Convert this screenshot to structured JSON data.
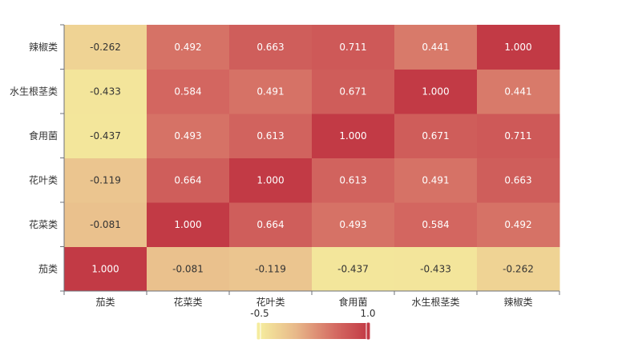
{
  "chart_data": {
    "type": "heatmap",
    "x_categories": [
      "茄类",
      "花菜类",
      "花叶类",
      "食用菌",
      "水生根茎类",
      "辣椒类"
    ],
    "y_categories": [
      "茄类",
      "花菜类",
      "花叶类",
      "食用菌",
      "水生根茎类",
      "辣椒类"
    ],
    "matrix": [
      [
        1.0,
        -0.081,
        -0.119,
        -0.437,
        -0.433,
        -0.262
      ],
      [
        -0.081,
        1.0,
        0.664,
        0.493,
        0.584,
        0.492
      ],
      [
        -0.119,
        0.664,
        1.0,
        0.613,
        0.491,
        0.663
      ],
      [
        -0.437,
        0.493,
        0.613,
        1.0,
        0.671,
        0.711
      ],
      [
        -0.433,
        0.584,
        0.491,
        0.671,
        1.0,
        0.441
      ],
      [
        -0.262,
        0.492,
        0.663,
        0.711,
        0.441,
        1.0
      ]
    ],
    "value_labels": [
      [
        "1.000",
        "-0.081",
        "-0.119",
        "-0.437",
        "-0.433",
        "-0.262"
      ],
      [
        "-0.081",
        "1.000",
        "0.664",
        "0.493",
        "0.584",
        "0.492"
      ],
      [
        "-0.119",
        "0.664",
        "1.000",
        "0.613",
        "0.491",
        "0.663"
      ],
      [
        "-0.437",
        "0.493",
        "0.613",
        "1.000",
        "0.671",
        "0.711"
      ],
      [
        "-0.433",
        "0.584",
        "0.491",
        "0.671",
        "1.000",
        "0.441"
      ],
      [
        "-0.262",
        "0.492",
        "0.663",
        "0.711",
        "0.441",
        "1.000"
      ]
    ],
    "visual_map": {
      "min": -0.5,
      "max": 1.0,
      "min_label": "-0.5",
      "max_label": "1.0",
      "colors": [
        "#f5ec9e",
        "#e8b98a",
        "#d46a62",
        "#c23a45"
      ],
      "orientation": "horizontal",
      "placement": "bottom-center"
    },
    "colors": {
      "axis": "#6e7079",
      "tick_text": "#333333",
      "cell_text_light": "#ffffff",
      "cell_text_dark": "#333333"
    }
  }
}
